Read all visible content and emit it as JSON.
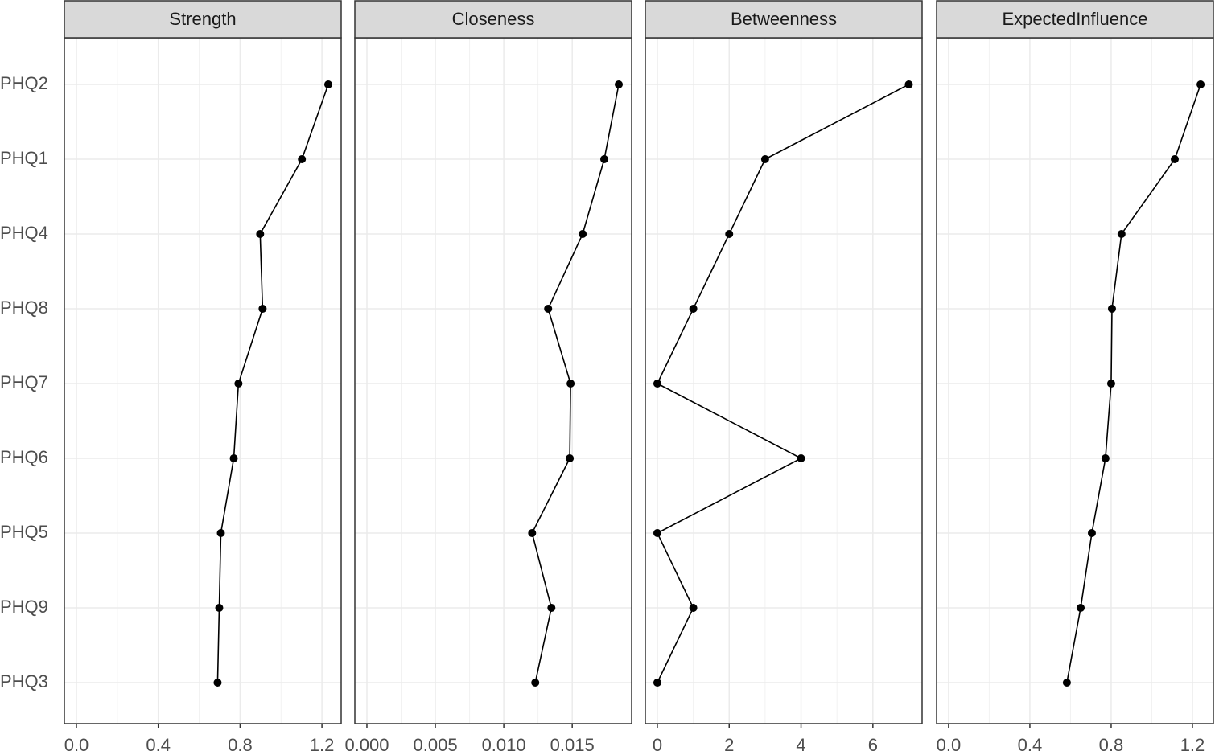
{
  "chart_data": [
    {
      "type": "line",
      "title": "Strength",
      "categories": [
        "PHQ2",
        "PHQ1",
        "PHQ4",
        "PHQ8",
        "PHQ7",
        "PHQ6",
        "PHQ5",
        "PHQ9",
        "PHQ3"
      ],
      "values": [
        1.231,
        1.102,
        0.898,
        0.91,
        0.792,
        0.769,
        0.706,
        0.698,
        0.69
      ],
      "color": "#000000",
      "xlim": [
        -0.059,
        1.294
      ],
      "xticks": [
        {
          "value": 0,
          "label": "0.0"
        },
        0.4,
        0.8,
        1.2
      ],
      "grid": true
    },
    {
      "type": "line",
      "title": "Closeness",
      "values": [
        0.0184,
        0.01734,
        0.01576,
        0.01324,
        0.01488,
        0.01482,
        0.01207,
        0.01348,
        0.0123
      ],
      "color": "#000000",
      "xlim": [
        -0.00088,
        0.01934
      ],
      "xticks": [
        {
          "value": 0,
          "label": "0.000"
        },
        0.005,
        {
          "value": 0.01,
          "label": "0.010"
        },
        0.015
      ],
      "grid": true
    },
    {
      "type": "line",
      "title": "Betweenness",
      "values": [
        7,
        3,
        2,
        1,
        0,
        4,
        0,
        1,
        0
      ],
      "color": "#000000",
      "xlim": [
        -0.335,
        7.37
      ],
      "xticks": [
        0,
        2,
        4,
        6
      ],
      "grid": true
    },
    {
      "type": "line",
      "title": "ExpectedInfluence",
      "values": [
        1.24,
        1.113,
        0.851,
        0.804,
        0.8,
        0.772,
        0.705,
        0.65,
        0.582
      ],
      "color": "#000000",
      "xlim": [
        -0.059,
        1.303
      ],
      "xticks": [
        {
          "value": 0,
          "label": "0.0"
        },
        0.4,
        0.8,
        1.2
      ],
      "grid": true
    }
  ]
}
